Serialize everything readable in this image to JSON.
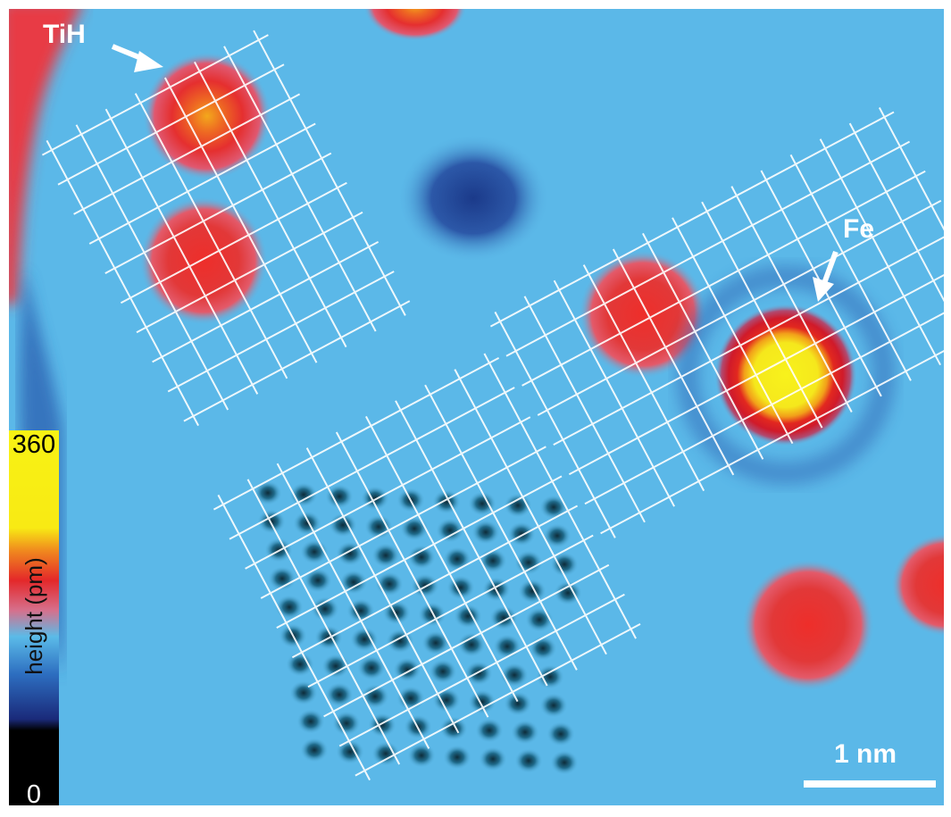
{
  "image": {
    "annotations": {
      "tih_label": "TiH",
      "fe_label": "Fe"
    },
    "scale_bar": {
      "label": "1 nm"
    },
    "colorbar": {
      "max": "360",
      "min": "0",
      "label": "height (pm)"
    },
    "colors": {
      "background": "#5bb8e8",
      "atom_low": "#e8343c",
      "atom_high": "#f6e820",
      "depression": "#1d3f8e",
      "grid": "#ffffff"
    }
  }
}
